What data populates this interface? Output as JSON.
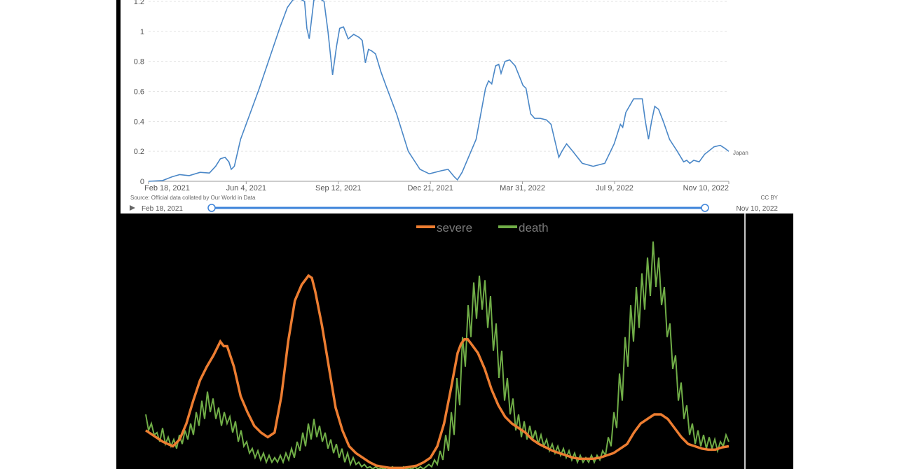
{
  "top_chart": {
    "type": "line",
    "series_label": "Japan",
    "source": "Source: Official data collated by Our World in Data",
    "license": "CC BY",
    "y_ticks": [
      "0",
      "0.2",
      "0.4",
      "0.6",
      "0.8",
      "1",
      "1.2"
    ],
    "y_tick_values": [
      0,
      0.2,
      0.4,
      0.6,
      0.8,
      1.0,
      1.2
    ],
    "x_ticks": [
      "Feb 18, 2021",
      "Jun 4, 2021",
      "Sep 12, 2021",
      "Dec 21, 2021",
      "Mar 31, 2022",
      "Jul 9, 2022",
      "Nov 10, 2022"
    ],
    "x_tick_days": [
      0,
      106,
      206,
      306,
      406,
      506,
      630
    ],
    "slider_start": "Feb 18, 2021",
    "slider_end": "Nov 10, 2022",
    "colors": {
      "line": "#4a87c7",
      "slider": "#3b82d9"
    },
    "xlim_days": [
      0,
      630
    ],
    "ylim": [
      0,
      1.2
    ],
    "points": [
      [
        0,
        0
      ],
      [
        18,
        0.005
      ],
      [
        30,
        0.03
      ],
      [
        40,
        0.045
      ],
      [
        52,
        0.038
      ],
      [
        66,
        0.06
      ],
      [
        78,
        0.055
      ],
      [
        86,
        0.1
      ],
      [
        92,
        0.15
      ],
      [
        98,
        0.16
      ],
      [
        103,
        0.13
      ],
      [
        106,
        0.08
      ],
      [
        110,
        0.1
      ],
      [
        118,
        0.28
      ],
      [
        130,
        0.45
      ],
      [
        142,
        0.62
      ],
      [
        155,
        0.82
      ],
      [
        168,
        1.02
      ],
      [
        178,
        1.16
      ],
      [
        185,
        1.21
      ],
      [
        193,
        1.22
      ],
      [
        200,
        1.2
      ],
      [
        203,
        1.02
      ],
      [
        206,
        0.95
      ],
      [
        212,
        1.21
      ],
      [
        219,
        1.22
      ],
      [
        225,
        1.2
      ],
      [
        230,
        1.0
      ],
      [
        236,
        0.71
      ],
      [
        241,
        0.9
      ],
      [
        245,
        1.02
      ],
      [
        250,
        1.03
      ],
      [
        256,
        0.95
      ],
      [
        263,
        0.98
      ],
      [
        270,
        0.96
      ],
      [
        274,
        0.94
      ],
      [
        278,
        0.79
      ],
      [
        282,
        0.88
      ],
      [
        286,
        0.87
      ],
      [
        291,
        0.85
      ],
      [
        298,
        0.73
      ],
      [
        305,
        0.63
      ],
      [
        318,
        0.45
      ],
      [
        333,
        0.2
      ],
      [
        348,
        0.08
      ],
      [
        360,
        0.05
      ],
      [
        375,
        0.07
      ],
      [
        384,
        0.08
      ],
      [
        392,
        0.03
      ],
      [
        396,
        0.01
      ],
      [
        402,
        0.06
      ],
      [
        420,
        0.28
      ],
      [
        432,
        0.62
      ],
      [
        436,
        0.67
      ],
      [
        440,
        0.65
      ],
      [
        445,
        0.77
      ],
      [
        449,
        0.78
      ],
      [
        452,
        0.72
      ],
      [
        457,
        0.8
      ],
      [
        463,
        0.81
      ],
      [
        470,
        0.77
      ],
      [
        477,
        0.68
      ],
      [
        480,
        0.64
      ],
      [
        484,
        0.62
      ],
      [
        490,
        0.45
      ],
      [
        495,
        0.42
      ],
      [
        502,
        0.42
      ],
      [
        510,
        0.41
      ],
      [
        516,
        0.38
      ],
      [
        522,
        0.25
      ],
      [
        526,
        0.16
      ],
      [
        530,
        0.2
      ],
      [
        536,
        0.25
      ],
      [
        544,
        0.2
      ],
      [
        556,
        0.12
      ],
      [
        570,
        0.1
      ],
      [
        585,
        0.12
      ],
      [
        597,
        0.25
      ],
      [
        605,
        0.38
      ],
      [
        608,
        0.36
      ],
      [
        612,
        0.46
      ],
      [
        622,
        0.55
      ],
      [
        630,
        0.55
      ],
      [
        633,
        0.55
      ],
      [
        637,
        0.4
      ],
      [
        641,
        0.28
      ],
      [
        645,
        0.4
      ],
      [
        649,
        0.5
      ],
      [
        654,
        0.48
      ],
      [
        660,
        0.4
      ],
      [
        668,
        0.28
      ],
      [
        678,
        0.2
      ],
      [
        686,
        0.13
      ],
      [
        690,
        0.14
      ],
      [
        694,
        0.12
      ],
      [
        699,
        0.14
      ],
      [
        706,
        0.13
      ],
      [
        713,
        0.18
      ],
      [
        725,
        0.23
      ],
      [
        733,
        0.24
      ],
      [
        739,
        0.22
      ],
      [
        744,
        0.2
      ]
    ]
  },
  "bottom_chart": {
    "type": "line",
    "series": [
      {
        "name": "severe",
        "color": "#ed7d31"
      },
      {
        "name": "death",
        "color": "#70ad47"
      }
    ],
    "ylim": [
      0,
      100
    ],
    "xlim": [
      0,
      100
    ],
    "severe_points": [
      [
        0,
        17
      ],
      [
        2,
        15
      ],
      [
        5,
        12
      ],
      [
        8,
        10
      ],
      [
        10,
        13
      ],
      [
        12,
        20
      ],
      [
        14,
        30
      ],
      [
        16,
        39
      ],
      [
        18,
        45
      ],
      [
        20,
        50
      ],
      [
        22,
        56
      ],
      [
        23,
        54
      ],
      [
        24,
        54
      ],
      [
        26,
        45
      ],
      [
        28,
        32
      ],
      [
        30,
        25
      ],
      [
        32,
        19
      ],
      [
        34,
        16
      ],
      [
        36,
        14
      ],
      [
        38,
        16
      ],
      [
        40,
        32
      ],
      [
        42,
        56
      ],
      [
        44,
        74
      ],
      [
        46,
        81
      ],
      [
        48,
        85
      ],
      [
        49,
        84
      ],
      [
        50,
        78
      ],
      [
        52,
        63
      ],
      [
        54,
        45
      ],
      [
        56,
        27
      ],
      [
        58,
        17
      ],
      [
        60,
        10
      ],
      [
        62,
        7
      ],
      [
        64,
        5
      ],
      [
        66,
        3
      ],
      [
        68,
        1.5
      ],
      [
        70,
        1
      ],
      [
        72,
        0.5
      ],
      [
        74,
        0.5
      ],
      [
        76,
        0.5
      ],
      [
        78,
        1
      ],
      [
        80,
        1.5
      ],
      [
        82,
        3
      ],
      [
        84,
        5
      ],
      [
        86,
        10
      ],
      [
        88,
        20
      ],
      [
        90,
        35
      ],
      [
        92,
        51
      ],
      [
        93,
        55
      ],
      [
        94,
        57
      ],
      [
        95,
        57
      ],
      [
        96,
        55
      ],
      [
        98,
        51
      ],
      [
        100,
        44
      ],
      [
        102,
        35
      ],
      [
        104,
        28
      ],
      [
        106,
        23
      ],
      [
        108,
        20
      ],
      [
        110,
        18
      ],
      [
        112,
        16
      ],
      [
        114,
        13
      ],
      [
        116,
        11
      ],
      [
        118,
        9.5
      ],
      [
        120,
        8
      ],
      [
        122,
        7
      ],
      [
        124,
        6
      ],
      [
        126,
        5
      ],
      [
        128,
        4.5
      ],
      [
        130,
        4.5
      ],
      [
        132,
        4.5
      ],
      [
        134,
        5
      ],
      [
        136,
        6
      ],
      [
        138,
        7
      ],
      [
        140,
        9
      ],
      [
        142,
        11
      ],
      [
        144,
        16
      ],
      [
        146,
        20
      ],
      [
        148,
        22
      ],
      [
        150,
        24
      ],
      [
        152,
        24
      ],
      [
        154,
        22
      ],
      [
        156,
        18
      ],
      [
        158,
        14
      ],
      [
        160,
        11
      ],
      [
        162,
        10
      ],
      [
        164,
        9
      ],
      [
        166,
        8.5
      ],
      [
        168,
        8.5
      ],
      [
        170,
        9.5
      ],
      [
        172,
        10
      ]
    ],
    "death_points": [
      [
        0,
        24
      ],
      [
        1,
        17
      ],
      [
        2,
        20
      ],
      [
        3,
        15
      ],
      [
        4,
        16
      ],
      [
        5,
        12
      ],
      [
        6,
        18
      ],
      [
        7,
        11
      ],
      [
        8,
        14
      ],
      [
        9,
        10
      ],
      [
        10,
        13
      ],
      [
        11,
        9
      ],
      [
        12,
        15
      ],
      [
        13,
        11
      ],
      [
        14,
        17
      ],
      [
        15,
        13
      ],
      [
        16,
        20
      ],
      [
        17,
        15
      ],
      [
        18,
        25
      ],
      [
        19,
        19
      ],
      [
        20,
        30
      ],
      [
        21,
        22
      ],
      [
        22,
        34
      ],
      [
        23,
        25
      ],
      [
        24,
        31
      ],
      [
        25,
        22
      ],
      [
        26,
        27
      ],
      [
        27,
        19
      ],
      [
        28,
        25
      ],
      [
        29,
        20
      ],
      [
        30,
        23
      ],
      [
        31,
        16
      ],
      [
        32,
        21
      ],
      [
        33,
        12
      ],
      [
        34,
        17
      ],
      [
        35,
        10
      ],
      [
        36,
        12
      ],
      [
        37,
        7
      ],
      [
        38,
        9
      ],
      [
        39,
        5
      ],
      [
        40,
        8
      ],
      [
        41,
        4
      ],
      [
        42,
        7
      ],
      [
        43,
        3
      ],
      [
        44,
        6
      ],
      [
        45,
        3
      ],
      [
        46,
        5
      ],
      [
        47,
        3
      ],
      [
        48,
        6
      ],
      [
        49,
        3
      ],
      [
        50,
        7
      ],
      [
        51,
        4
      ],
      [
        52,
        9
      ],
      [
        53,
        5
      ],
      [
        54,
        12
      ],
      [
        55,
        8
      ],
      [
        56,
        16
      ],
      [
        57,
        10
      ],
      [
        58,
        20
      ],
      [
        59,
        13
      ],
      [
        60,
        22
      ],
      [
        61,
        14
      ],
      [
        62,
        19
      ],
      [
        63,
        12
      ],
      [
        64,
        16
      ],
      [
        65,
        9
      ],
      [
        66,
        13
      ],
      [
        67,
        7
      ],
      [
        68,
        11
      ],
      [
        69,
        5
      ],
      [
        70,
        9
      ],
      [
        71,
        3
      ],
      [
        72,
        7
      ],
      [
        73,
        2
      ],
      [
        74,
        5
      ],
      [
        75,
        2
      ],
      [
        76,
        3
      ],
      [
        77,
        1
      ],
      [
        78,
        2
      ],
      [
        79,
        0.5
      ],
      [
        80,
        1
      ],
      [
        81,
        0
      ],
      [
        82,
        1
      ],
      [
        83,
        0
      ],
      [
        84,
        0.5
      ],
      [
        85,
        0
      ],
      [
        86,
        0.5
      ],
      [
        87,
        0
      ],
      [
        88,
        1
      ],
      [
        89,
        0
      ],
      [
        90,
        0.5
      ],
      [
        91,
        0
      ],
      [
        92,
        1
      ],
      [
        93,
        0
      ],
      [
        94,
        0.5
      ],
      [
        95,
        0
      ],
      [
        96,
        1
      ],
      [
        97,
        0
      ],
      [
        98,
        1
      ],
      [
        99,
        0
      ],
      [
        100,
        1
      ],
      [
        101,
        2
      ],
      [
        102,
        1
      ],
      [
        103,
        4
      ],
      [
        104,
        2
      ],
      [
        105,
        8
      ],
      [
        106,
        4
      ],
      [
        107,
        15
      ],
      [
        108,
        8
      ],
      [
        109,
        25
      ],
      [
        110,
        15
      ],
      [
        111,
        40
      ],
      [
        112,
        28
      ],
      [
        113,
        58
      ],
      [
        114,
        45
      ],
      [
        115,
        72
      ],
      [
        116,
        58
      ],
      [
        117,
        82
      ],
      [
        118,
        66
      ],
      [
        119,
        85
      ],
      [
        120,
        70
      ],
      [
        121,
        83
      ],
      [
        122,
        62
      ],
      [
        123,
        76
      ],
      [
        124,
        52
      ],
      [
        125,
        64
      ],
      [
        126,
        40
      ],
      [
        127,
        52
      ],
      [
        128,
        30
      ],
      [
        129,
        40
      ],
      [
        130,
        24
      ],
      [
        131,
        31
      ],
      [
        132,
        17
      ],
      [
        133,
        24
      ],
      [
        134,
        14
      ],
      [
        135,
        21
      ],
      [
        136,
        13
      ],
      [
        137,
        19
      ],
      [
        138,
        13
      ],
      [
        139,
        17
      ],
      [
        140,
        11
      ],
      [
        141,
        15
      ],
      [
        142,
        10
      ],
      [
        143,
        13
      ],
      [
        144,
        8
      ],
      [
        145,
        11
      ],
      [
        146,
        7
      ],
      [
        147,
        10
      ],
      [
        148,
        6
      ],
      [
        149,
        9
      ],
      [
        150,
        5
      ],
      [
        151,
        8
      ],
      [
        152,
        4
      ],
      [
        153,
        7
      ],
      [
        154,
        3
      ],
      [
        155,
        6
      ],
      [
        156,
        3
      ],
      [
        157,
        5
      ],
      [
        158,
        3
      ],
      [
        159,
        6
      ],
      [
        160,
        3
      ],
      [
        161,
        6
      ],
      [
        162,
        4
      ],
      [
        163,
        8
      ],
      [
        164,
        6
      ],
      [
        165,
        14
      ],
      [
        166,
        10
      ],
      [
        167,
        25
      ],
      [
        168,
        18
      ],
      [
        169,
        42
      ],
      [
        170,
        30
      ],
      [
        171,
        58
      ],
      [
        172,
        45
      ],
      [
        173,
        72
      ],
      [
        174,
        56
      ],
      [
        175,
        80
      ],
      [
        176,
        62
      ],
      [
        177,
        86
      ],
      [
        178,
        70
      ],
      [
        179,
        93
      ],
      [
        180,
        76
      ],
      [
        181,
        100
      ],
      [
        182,
        80
      ],
      [
        183,
        93
      ],
      [
        184,
        72
      ],
      [
        185,
        80
      ],
      [
        186,
        58
      ],
      [
        187,
        64
      ],
      [
        188,
        44
      ],
      [
        189,
        50
      ],
      [
        190,
        30
      ],
      [
        191,
        38
      ],
      [
        192,
        22
      ],
      [
        193,
        28
      ],
      [
        194,
        15
      ],
      [
        195,
        20
      ],
      [
        196,
        11
      ],
      [
        197,
        17
      ],
      [
        198,
        10
      ],
      [
        199,
        15
      ],
      [
        200,
        9
      ],
      [
        201,
        14
      ],
      [
        202,
        9
      ],
      [
        203,
        13
      ],
      [
        204,
        8
      ],
      [
        205,
        12
      ],
      [
        206,
        10
      ],
      [
        207,
        15
      ],
      [
        208,
        12
      ]
    ]
  }
}
